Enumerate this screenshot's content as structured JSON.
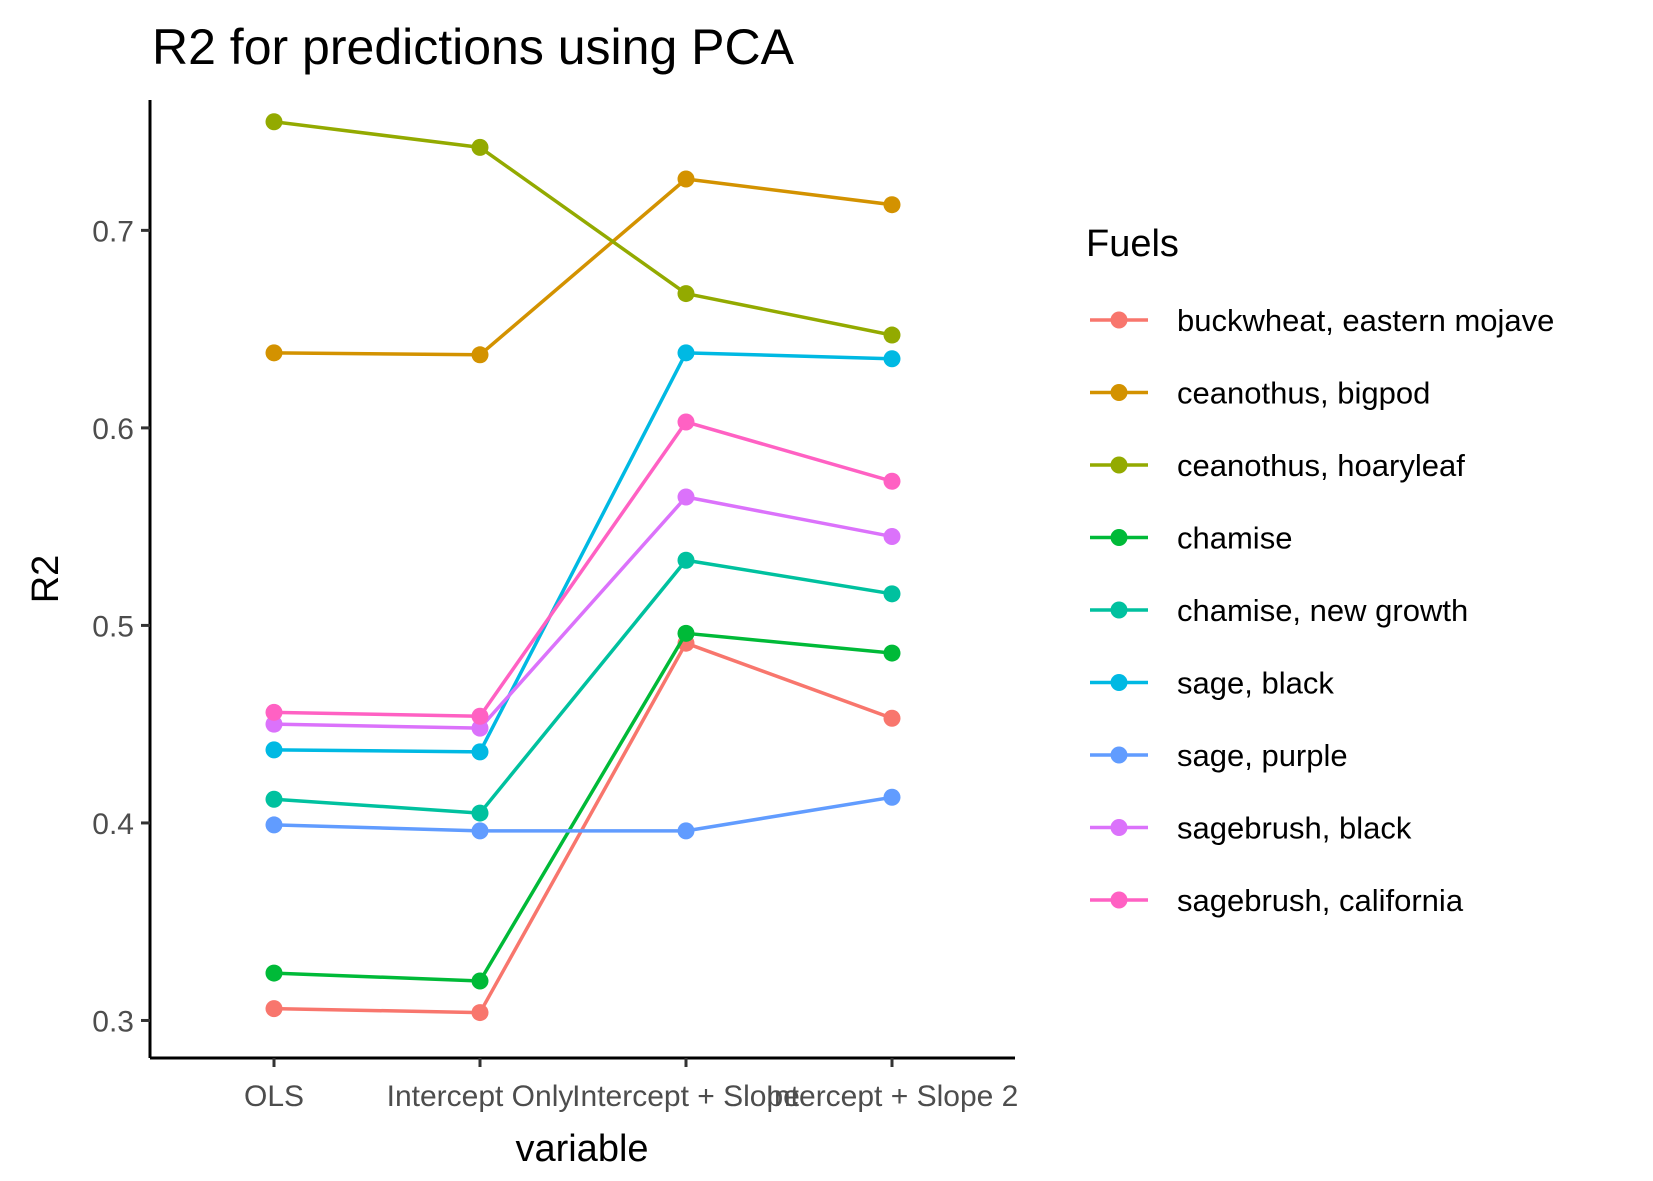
{
  "chart_data": {
    "type": "line",
    "title": "R2 for predictions using PCA",
    "xlabel": "variable",
    "ylabel": "R2",
    "categories": [
      "OLS",
      "Intercept Only",
      "Intercept + Slope",
      "Intercept + Slope 2"
    ],
    "y_ticks": [
      "0.3",
      "0.4",
      "0.5",
      "0.6",
      "0.7"
    ],
    "ylim": [
      0.281,
      0.766
    ],
    "grid": false,
    "legend_title": "Fuels",
    "legend_position": "right",
    "series": [
      {
        "name": "buckwheat, eastern mojave",
        "color": "#F8766D",
        "values": [
          0.306,
          0.304,
          0.491,
          0.453
        ]
      },
      {
        "name": "ceanothus, bigpod",
        "color": "#D39200",
        "values": [
          0.638,
          0.637,
          0.726,
          0.713
        ]
      },
      {
        "name": "ceanothus, hoaryleaf",
        "color": "#93AA00",
        "values": [
          0.755,
          0.742,
          0.668,
          0.647
        ]
      },
      {
        "name": "chamise",
        "color": "#00BA38",
        "values": [
          0.324,
          0.32,
          0.496,
          0.486
        ]
      },
      {
        "name": "chamise, new growth",
        "color": "#00C19F",
        "values": [
          0.412,
          0.405,
          0.533,
          0.516
        ]
      },
      {
        "name": "sage, black",
        "color": "#00B9E3",
        "values": [
          0.437,
          0.436,
          0.638,
          0.635
        ]
      },
      {
        "name": "sage, purple",
        "color": "#619CFF",
        "values": [
          0.399,
          0.396,
          0.396,
          0.413
        ]
      },
      {
        "name": "sagebrush, black",
        "color": "#DB72FB",
        "values": [
          0.45,
          0.448,
          0.565,
          0.545
        ]
      },
      {
        "name": "sagebrush, california",
        "color": "#FF61C3",
        "values": [
          0.456,
          0.454,
          0.603,
          0.573
        ]
      }
    ]
  }
}
